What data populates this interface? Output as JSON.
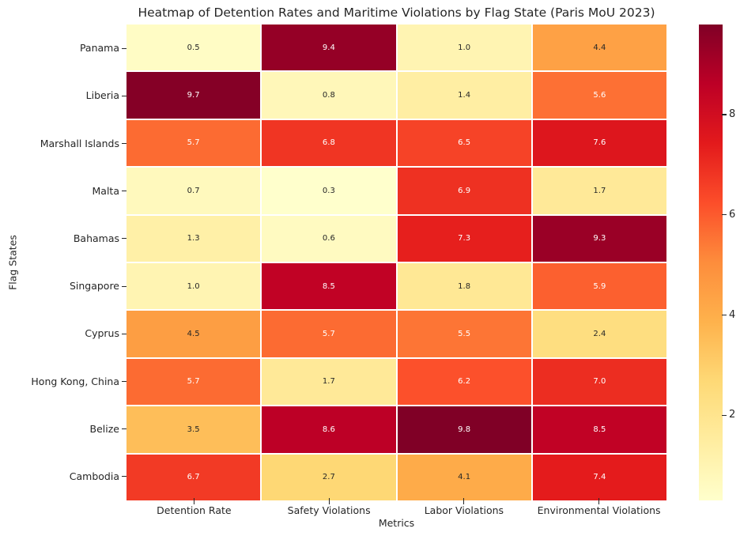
{
  "chart_data": {
    "type": "heatmap",
    "title": "Heatmap of Detention Rates and Maritime Violations by Flag State (Paris MoU 2023)",
    "xlabel": "Metrics",
    "ylabel": "Flag States",
    "columns": [
      "Detention Rate",
      "Safety Violations",
      "Labor Violations",
      "Environmental Violations"
    ],
    "rows": [
      "Panama",
      "Liberia",
      "Marshall Islands",
      "Malta",
      "Bahamas",
      "Singapore",
      "Cyprus",
      "Hong Kong, China",
      "Belize",
      "Cambodia"
    ],
    "values": [
      [
        0.5,
        9.4,
        1.0,
        4.4
      ],
      [
        9.7,
        0.8,
        1.4,
        5.6
      ],
      [
        5.7,
        6.8,
        6.5,
        7.6
      ],
      [
        0.7,
        0.3,
        6.9,
        1.7
      ],
      [
        1.3,
        0.6,
        7.3,
        9.3
      ],
      [
        1.0,
        8.5,
        1.8,
        5.9
      ],
      [
        4.5,
        5.7,
        5.5,
        2.4
      ],
      [
        5.7,
        1.7,
        6.2,
        7.0
      ],
      [
        3.5,
        8.6,
        9.8,
        8.5
      ],
      [
        6.7,
        2.7,
        4.1,
        7.4
      ]
    ],
    "value_format_decimals": 1,
    "vmin": 0.3,
    "vmax": 9.8,
    "colormap": "YlOrRd",
    "colormap_stops": [
      "#ffffcc",
      "#ffeda0",
      "#fed976",
      "#feb24c",
      "#fd8d3c",
      "#fc4e2a",
      "#e31a1c",
      "#bd0026",
      "#800026"
    ],
    "colorbar_ticks": [
      2,
      4,
      6,
      8
    ],
    "annotation_colors": {
      "on_light": "#262626",
      "on_dark": "#ffffff"
    },
    "gridline_color": "#ffffff",
    "legend_position": "right-colorbar"
  }
}
